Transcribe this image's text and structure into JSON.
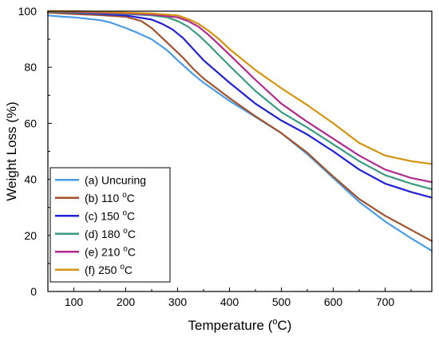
{
  "chart_data": {
    "type": "line",
    "title": "",
    "xlabel": "Temperature (",
    "xlabel_sup": "o",
    "xlabel_suffix": "C)",
    "ylabel": "Weight Loss (%)",
    "xlim": [
      50,
      790
    ],
    "ylim": [
      0,
      100
    ],
    "xticks": [
      100,
      200,
      300,
      400,
      500,
      600,
      700
    ],
    "yticks": [
      0,
      20,
      40,
      60,
      80,
      100
    ],
    "grid": false,
    "legend_position": "bottom-left",
    "series": [
      {
        "name": "(a) Uncuring",
        "name_sup": "",
        "name_suffix": "",
        "color": "#4a9be8",
        "x": [
          50,
          80,
          100,
          150,
          170,
          200,
          220,
          250,
          280,
          300,
          330,
          350,
          400,
          450,
          500,
          550,
          600,
          650,
          700,
          750,
          790
        ],
        "y": [
          98.5,
          98,
          97.8,
          96.8,
          96,
          94,
          92.5,
          90,
          86,
          82.5,
          77.5,
          74.5,
          68,
          62.3,
          56.5,
          49,
          40.5,
          32,
          25,
          19,
          14.5
        ]
      },
      {
        "name": "(b) 110 ",
        "name_sup": "o",
        "name_suffix": "C",
        "color": "#a0522d",
        "x": [
          50,
          100,
          150,
          200,
          230,
          250,
          270,
          290,
          310,
          330,
          350,
          400,
          450,
          500,
          550,
          600,
          650,
          700,
          750,
          790
        ],
        "y": [
          99.5,
          99,
          98.6,
          98,
          96.5,
          94,
          90.5,
          87,
          83.5,
          79.5,
          76,
          69,
          62.5,
          56.5,
          49.5,
          41,
          33,
          27,
          22,
          18
        ]
      },
      {
        "name": "(c) 150 ",
        "name_sup": "o",
        "name_suffix": "C",
        "color": "#2020d8",
        "x": [
          50,
          100,
          150,
          200,
          250,
          270,
          290,
          310,
          330,
          350,
          400,
          450,
          500,
          550,
          600,
          650,
          700,
          750,
          790
        ],
        "y": [
          99.8,
          99.5,
          99,
          98.5,
          97,
          95.5,
          93.5,
          90.5,
          86.5,
          82.5,
          74.5,
          67,
          61,
          56,
          50,
          43.5,
          38.5,
          35.5,
          33.5
        ]
      },
      {
        "name": "(d) 180 ",
        "name_sup": "o",
        "name_suffix": "C",
        "color": "#3a9a82",
        "x": [
          50,
          100,
          150,
          200,
          250,
          280,
          300,
          320,
          340,
          360,
          400,
          450,
          500,
          550,
          600,
          650,
          700,
          750,
          790
        ],
        "y": [
          99.8,
          99.6,
          99.3,
          99,
          98.5,
          97.8,
          96.5,
          94.5,
          91.5,
          88,
          80.5,
          71.5,
          64,
          58.5,
          52.5,
          46.5,
          41.5,
          38.5,
          36.5
        ]
      },
      {
        "name": "(e) 210 ",
        "name_sup": "o",
        "name_suffix": "C",
        "color": "#b02a8e",
        "x": [
          50,
          100,
          150,
          200,
          250,
          300,
          320,
          340,
          360,
          380,
          400,
          450,
          500,
          550,
          600,
          650,
          700,
          750,
          790
        ],
        "y": [
          100,
          99.8,
          99.5,
          99.2,
          98.8,
          97.8,
          96.5,
          94.5,
          91.5,
          88,
          84.5,
          75.5,
          67,
          60.5,
          54.5,
          48.5,
          43.5,
          40.5,
          39
        ]
      },
      {
        "name": "(f) 250 ",
        "name_sup": "o",
        "name_suffix": "C",
        "color": "#d4930e",
        "x": [
          50,
          100,
          150,
          200,
          250,
          300,
          320,
          340,
          360,
          380,
          400,
          450,
          500,
          550,
          600,
          650,
          700,
          750,
          790
        ],
        "y": [
          100,
          100,
          99.8,
          99.5,
          99.2,
          98.5,
          97.2,
          95.5,
          93,
          90,
          86.5,
          79,
          72.5,
          66.5,
          60,
          53,
          48.5,
          46.5,
          45.5
        ]
      }
    ]
  }
}
